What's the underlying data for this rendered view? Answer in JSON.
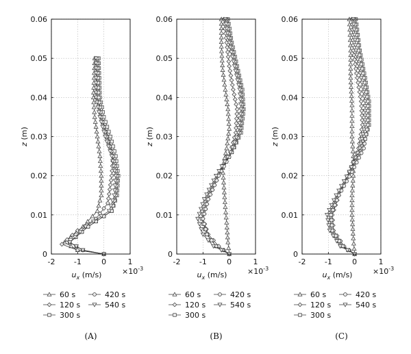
{
  "chart_data": [
    {
      "type": "line",
      "caption": "(A)",
      "xlabel": "u_x (m/s)",
      "ylabel": "z (m)",
      "x_multiplier": "×10^-3",
      "xlim": [
        -2,
        1
      ],
      "ylim": [
        0,
        0.06
      ],
      "xticks": [
        "-2",
        "-1",
        "0",
        "1"
      ],
      "yticks": [
        "0",
        "0.01",
        "0.02",
        "0.03",
        "0.04",
        "0.05",
        "0.06"
      ],
      "grid": true,
      "series": [
        {
          "name": "60 s",
          "marker": "triangle-up",
          "x": [
            0.0,
            -1.0,
            -1.5,
            -0.8,
            -0.25,
            -0.1,
            -0.1,
            -0.15,
            -0.25,
            -0.35,
            -0.4,
            -0.35
          ],
          "y": [
            0.0,
            0.001,
            0.003,
            0.007,
            0.011,
            0.015,
            0.02,
            0.025,
            0.03,
            0.035,
            0.04,
            0.05
          ]
        },
        {
          "name": "120 s",
          "marker": "diamond",
          "x": [
            0.0,
            -1.0,
            -1.6,
            -1.0,
            -0.3,
            0.15,
            0.3,
            0.35,
            0.15,
            -0.1,
            -0.25,
            -0.3
          ],
          "y": [
            0.0,
            0.001,
            0.0025,
            0.006,
            0.009,
            0.013,
            0.02,
            0.025,
            0.03,
            0.035,
            0.04,
            0.05
          ]
        },
        {
          "name": "300 s",
          "marker": "square",
          "x": [
            0.0,
            -0.8,
            -1.3,
            -0.6,
            0.3,
            0.5,
            0.55,
            0.45,
            0.25,
            0.0,
            -0.15,
            -0.2
          ],
          "y": [
            0.0,
            0.001,
            0.003,
            0.007,
            0.011,
            0.015,
            0.02,
            0.025,
            0.03,
            0.035,
            0.04,
            0.05
          ]
        },
        {
          "name": "420 s",
          "marker": "circle",
          "x": [
            0.0,
            -0.8,
            -1.3,
            -0.6,
            0.3,
            0.45,
            0.5,
            0.35,
            0.1,
            -0.1,
            -0.2,
            -0.25
          ],
          "y": [
            0.0,
            0.001,
            0.003,
            0.007,
            0.011,
            0.015,
            0.02,
            0.025,
            0.03,
            0.035,
            0.04,
            0.05
          ]
        },
        {
          "name": "540 s",
          "marker": "triangle-down",
          "x": [
            0.0,
            -0.8,
            -1.3,
            -0.7,
            0.2,
            0.4,
            0.45,
            0.3,
            0.05,
            -0.15,
            -0.3,
            -0.3
          ],
          "y": [
            0.0,
            0.001,
            0.003,
            0.007,
            0.011,
            0.015,
            0.02,
            0.025,
            0.03,
            0.035,
            0.04,
            0.05
          ]
        }
      ]
    },
    {
      "type": "line",
      "caption": "(B)",
      "xlabel": "u_x (m/s)",
      "ylabel": "z (m)",
      "x_multiplier": "×10^-3",
      "xlim": [
        -2,
        1
      ],
      "ylim": [
        0,
        0.06
      ],
      "xticks": [
        "-2",
        "-1",
        "0",
        "1"
      ],
      "yticks": [
        "0",
        "0.01",
        "0.02",
        "0.03",
        "0.04",
        "0.05",
        "0.06"
      ],
      "grid": true,
      "series": [
        {
          "name": "60 s",
          "marker": "triangle-up",
          "x": [
            0.0,
            -0.05,
            -0.1,
            -0.15,
            -0.2,
            -0.25,
            -0.1,
            0.0,
            -0.05,
            -0.15,
            -0.25,
            -0.3,
            -0.3
          ],
          "y": [
            0.0,
            0.003,
            0.008,
            0.012,
            0.017,
            0.022,
            0.027,
            0.032,
            0.037,
            0.042,
            0.047,
            0.053,
            0.06
          ]
        },
        {
          "name": "120 s",
          "marker": "diamond",
          "x": [
            0.0,
            -0.4,
            -0.8,
            -1.0,
            -0.8,
            -0.4,
            0.05,
            0.25,
            0.3,
            0.15,
            0.0,
            -0.1,
            -0.2
          ],
          "y": [
            0.0,
            0.002,
            0.005,
            0.009,
            0.014,
            0.02,
            0.026,
            0.031,
            0.037,
            0.042,
            0.048,
            0.054,
            0.06
          ]
        },
        {
          "name": "300 s",
          "marker": "square",
          "x": [
            0.0,
            -0.5,
            -0.85,
            -1.05,
            -0.85,
            -0.45,
            0.1,
            0.45,
            0.55,
            0.5,
            0.3,
            0.1,
            -0.05
          ],
          "y": [
            0.0,
            0.002,
            0.005,
            0.009,
            0.014,
            0.02,
            0.026,
            0.031,
            0.037,
            0.042,
            0.048,
            0.054,
            0.06
          ]
        },
        {
          "name": "420 s",
          "marker": "circle",
          "x": [
            0.0,
            -0.5,
            -0.85,
            -1.0,
            -0.8,
            -0.4,
            0.1,
            0.4,
            0.5,
            0.45,
            0.25,
            0.05,
            -0.1
          ],
          "y": [
            0.0,
            0.002,
            0.005,
            0.009,
            0.014,
            0.02,
            0.026,
            0.031,
            0.037,
            0.042,
            0.048,
            0.054,
            0.06
          ]
        },
        {
          "name": "540 s",
          "marker": "triangle-down",
          "x": [
            0.0,
            -0.6,
            -1.0,
            -1.2,
            -0.95,
            -0.5,
            0.05,
            0.35,
            0.45,
            0.4,
            0.2,
            0.0,
            -0.15
          ],
          "y": [
            0.0,
            0.002,
            0.005,
            0.009,
            0.014,
            0.02,
            0.026,
            0.031,
            0.037,
            0.042,
            0.048,
            0.054,
            0.06
          ]
        }
      ]
    },
    {
      "type": "line",
      "caption": "(C)",
      "xlabel": "u_x (m/s)",
      "ylabel": "z (m)",
      "x_multiplier": "×10^-3",
      "xlim": [
        -2,
        1
      ],
      "ylim": [
        0,
        0.06
      ],
      "xticks": [
        "-2",
        "-1",
        "0",
        "1"
      ],
      "yticks": [
        "0",
        "0.01",
        "0.02",
        "0.03",
        "0.04",
        "0.05",
        "0.06"
      ],
      "grid": true,
      "series": [
        {
          "name": "60 s",
          "marker": "triangle-up",
          "x": [
            0.0,
            -0.05,
            -0.1,
            -0.1,
            -0.05,
            -0.05,
            -0.1,
            -0.1,
            -0.15,
            -0.15,
            -0.2
          ],
          "y": [
            0.0,
            0.004,
            0.01,
            0.015,
            0.02,
            0.025,
            0.03,
            0.038,
            0.045,
            0.052,
            0.06
          ]
        },
        {
          "name": "120 s",
          "marker": "diamond",
          "x": [
            0.0,
            -0.4,
            -0.8,
            -0.85,
            -0.6,
            -0.2,
            0.15,
            0.3,
            0.25,
            0.1,
            -0.05,
            -0.1
          ],
          "y": [
            0.0,
            0.002,
            0.006,
            0.01,
            0.015,
            0.021,
            0.027,
            0.033,
            0.039,
            0.045,
            0.052,
            0.06
          ]
        },
        {
          "name": "300 s",
          "marker": "square",
          "x": [
            0.0,
            -0.5,
            -0.9,
            -0.95,
            -0.65,
            -0.15,
            0.3,
            0.55,
            0.55,
            0.4,
            0.2,
            0.05
          ],
          "y": [
            0.0,
            0.002,
            0.006,
            0.01,
            0.015,
            0.021,
            0.027,
            0.033,
            0.039,
            0.045,
            0.052,
            0.06
          ]
        },
        {
          "name": "420 s",
          "marker": "circle",
          "x": [
            0.0,
            -0.45,
            -0.85,
            -0.9,
            -0.6,
            -0.1,
            0.35,
            0.5,
            0.5,
            0.35,
            0.15,
            0.0
          ],
          "y": [
            0.0,
            0.002,
            0.006,
            0.01,
            0.015,
            0.021,
            0.027,
            0.033,
            0.039,
            0.045,
            0.052,
            0.06
          ]
        },
        {
          "name": "540 s",
          "marker": "triangle-down",
          "x": [
            0.0,
            -0.55,
            -0.95,
            -1.05,
            -0.7,
            -0.2,
            0.2,
            0.4,
            0.4,
            0.25,
            0.05,
            -0.05
          ],
          "y": [
            0.0,
            0.002,
            0.006,
            0.01,
            0.015,
            0.021,
            0.027,
            0.033,
            0.039,
            0.045,
            0.052,
            0.06
          ]
        }
      ]
    }
  ]
}
